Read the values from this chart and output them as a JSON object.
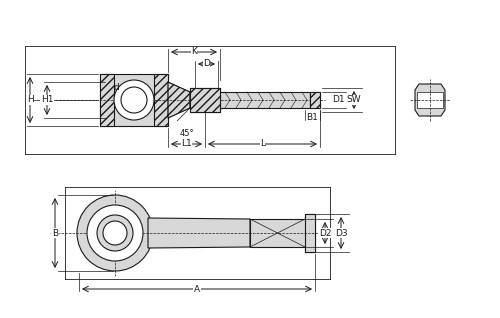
{
  "bg_color": "#ffffff",
  "line_color": "#1a1a1a",
  "fill_light": "#d8d8d8",
  "fill_hatch": "#b0b0b0",
  "dim_color": "#222222",
  "fig_width": 5.0,
  "fig_height": 3.18,
  "labels": {
    "K": "K",
    "D": "D",
    "d": "d",
    "H": "H",
    "H1": "H1",
    "L1": "L1",
    "L": "L",
    "45deg": "45°",
    "D1": "D1",
    "SW": "SW",
    "B1": "B1",
    "B": "B",
    "A": "A",
    "D2": "D2",
    "D3": "D3"
  }
}
